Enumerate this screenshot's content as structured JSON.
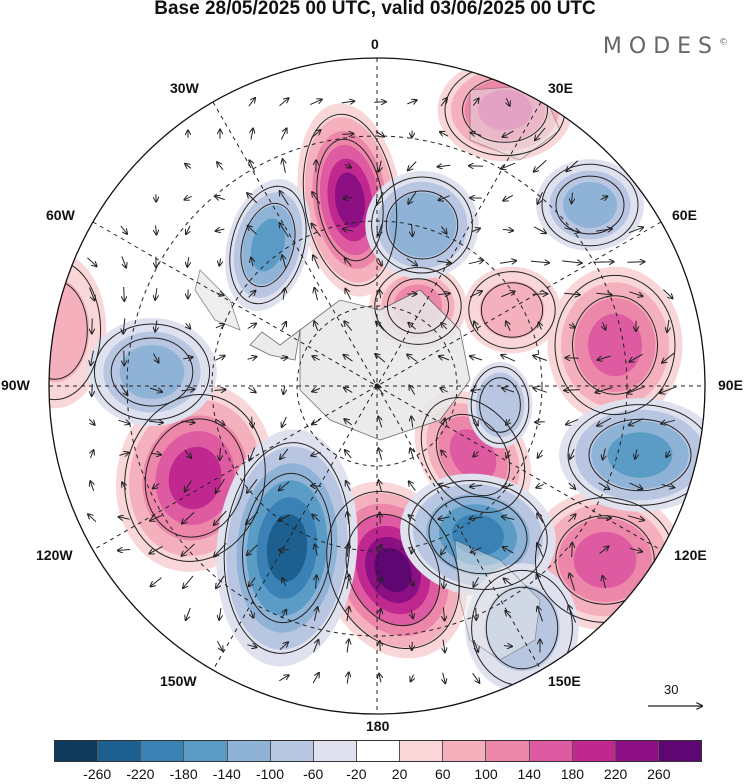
{
  "title": "Base 28/05/2025 00 UTC, valid 03/06/2025 00 UTC",
  "brand": {
    "text": "MODES",
    "mark": "©"
  },
  "map": {
    "projection": "south polar stereographic",
    "longitude_labels": {
      "top": "0",
      "top_left": "30W",
      "top_right": "30E",
      "upper_left": "60W",
      "upper_right": "60E",
      "left": "90W",
      "right": "90E",
      "lower_left": "120W",
      "lower_right": "120E",
      "bottom_left": "150W",
      "bottom_right": "150E",
      "bottom": "180"
    }
  },
  "reference_vector": {
    "label": "30"
  },
  "colorbar": {
    "colors": [
      "#0f3a5c",
      "#1d5f8f",
      "#3a82b5",
      "#5b9cc6",
      "#8fb3d6",
      "#b9c6e2",
      "#dfe1ef",
      "#ffffff",
      "#f9d6d8",
      "#f4b1bd",
      "#ec87a9",
      "#de5ba1",
      "#c0288f",
      "#8c0f83",
      "#5e0773"
    ],
    "tick_labels": [
      "-260",
      "-220",
      "-180",
      "-140",
      "-100",
      "-60",
      "-20",
      "20",
      "60",
      "100",
      "140",
      "180",
      "220",
      "260"
    ]
  },
  "anomaly_centers": [
    {
      "sign": "positive",
      "value": 230
    },
    {
      "sign": "positive",
      "value": 260
    },
    {
      "sign": "positive",
      "value": 200
    },
    {
      "sign": "positive",
      "value": 150
    },
    {
      "sign": "positive",
      "value": 140
    },
    {
      "sign": "positive",
      "value": 150
    },
    {
      "sign": "positive",
      "value": 140
    },
    {
      "sign": "positive",
      "value": 80
    },
    {
      "sign": "positive",
      "value": 100
    },
    {
      "sign": "positive",
      "value": 90
    },
    {
      "sign": "negative",
      "value": -240
    },
    {
      "sign": "negative",
      "value": -200
    },
    {
      "sign": "negative",
      "value": -150
    },
    {
      "sign": "negative",
      "value": -160
    },
    {
      "sign": "negative",
      "value": -140
    },
    {
      "sign": "negative",
      "value": -120
    },
    {
      "sign": "negative",
      "value": -120
    },
    {
      "sign": "negative",
      "value": -100
    },
    {
      "sign": "negative",
      "value": -80
    }
  ]
}
